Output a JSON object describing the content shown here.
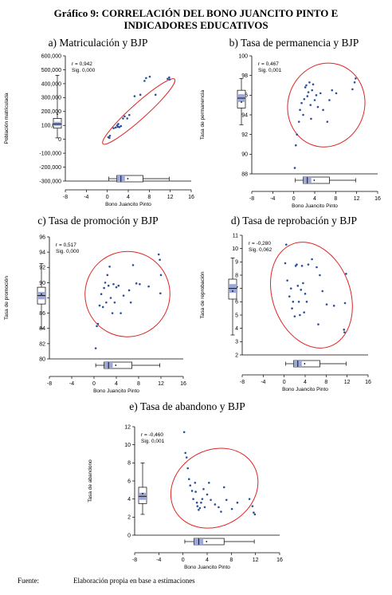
{
  "figure": {
    "title_line1": "Gráfico 9: CORRELACIÓN DEL BONO JUANCITO PINTO E",
    "title_line2": "INDICADORES EDUCATIVOS",
    "source_label": "Fuente:",
    "source_text": "Elaboración propia en base a estimaciones",
    "colors": {
      "points": "#2b4f9c",
      "ellipse": "#e02424",
      "box_fill": "#9ea8d6",
      "axis": "#000000"
    }
  },
  "chart_data": [
    {
      "type": "scatter",
      "title": "a) Matriculación y BJP",
      "xlabel": "Bono Juancito Pinto",
      "ylabel": "Población matriculada",
      "stat_r": "r = 0,942",
      "stat_sig": "Sig. 0,000",
      "xlim": [
        -8,
        16
      ],
      "ylim": [
        -300000,
        600000
      ],
      "xticks": [
        "-8",
        "-4",
        "0",
        "4",
        "8",
        "12",
        "16"
      ],
      "yticks": [
        "-300,000",
        "-200,000",
        "-100,000",
        "0",
        "100,000",
        "200,000",
        "300,000",
        "400,000",
        "500,000",
        "600,000"
      ],
      "ellipse": {
        "cx": 6,
        "cy": 200000,
        "rx": 9.2,
        "ry": 55000,
        "angle_deg": -42
      },
      "y_box": {
        "min": 10000,
        "q1": 80000,
        "median": 110000,
        "q3": 150000,
        "max": 460000,
        "mean": 180000
      },
      "x_box": {
        "min": 0.3,
        "q1": 1.8,
        "median": 2.6,
        "q3": 6.8,
        "max": 11.8,
        "mean": 3.9
      },
      "points": [
        [
          0.2,
          15000
        ],
        [
          0.5,
          25000
        ],
        [
          0.4,
          10000
        ],
        [
          1.2,
          80000
        ],
        [
          1.6,
          85000
        ],
        [
          2.0,
          90000
        ],
        [
          2.3,
          88000
        ],
        [
          2.6,
          95000
        ],
        [
          1.9,
          100000
        ],
        [
          2.1,
          110000
        ],
        [
          3.0,
          150000
        ],
        [
          3.3,
          165000
        ],
        [
          4.2,
          175000
        ],
        [
          3.8,
          150000
        ],
        [
          5.2,
          310000
        ],
        [
          6.3,
          320000
        ],
        [
          7.1,
          420000
        ],
        [
          7.4,
          440000
        ],
        [
          8.1,
          450000
        ],
        [
          9.2,
          320000
        ],
        [
          11.5,
          435000
        ],
        [
          11.8,
          445000
        ],
        [
          11.9,
          430000
        ]
      ]
    },
    {
      "type": "scatter",
      "title": "b) Tasa de permanencia y BJP",
      "xlabel": "Bono Juancito Pinto",
      "ylabel": "Tasa de permanencia",
      "stat_r": "r = 0,467",
      "stat_sig": "Sig. 0,001",
      "xlim": [
        -8,
        16
      ],
      "ylim": [
        88,
        100
      ],
      "xticks": [
        "-8",
        "-4",
        "0",
        "4",
        "8",
        "12",
        "16"
      ],
      "yticks": [
        "88",
        "90",
        "92",
        "94",
        "96",
        "98",
        "100"
      ],
      "ellipse": {
        "cx": 6.2,
        "cy": 95.0,
        "rx": 7.3,
        "ry": 4.3,
        "angle_deg": 18
      },
      "y_box": {
        "min": 93.0,
        "q1": 94.7,
        "median": 95.7,
        "q3": 96.5,
        "max": 97.7,
        "mean": 95.3
      },
      "x_box": {
        "min": 0.3,
        "q1": 1.8,
        "median": 2.6,
        "q3": 6.8,
        "max": 11.8,
        "mean": 3.9
      },
      "points": [
        [
          0.2,
          88.6
        ],
        [
          0.4,
          90.9
        ],
        [
          0.6,
          92.0
        ],
        [
          1.0,
          93.3
        ],
        [
          1.2,
          94.5
        ],
        [
          1.5,
          95.2
        ],
        [
          1.8,
          94.0
        ],
        [
          2.0,
          95.6
        ],
        [
          2.2,
          96.8
        ],
        [
          2.4,
          97.0
        ],
        [
          2.6,
          95.9
        ],
        [
          2.8,
          96.3
        ],
        [
          3.0,
          97.3
        ],
        [
          3.2,
          95.0
        ],
        [
          3.3,
          93.6
        ],
        [
          3.5,
          96.5
        ],
        [
          3.7,
          97.1
        ],
        [
          4.0,
          95.5
        ],
        [
          4.3,
          96.0
        ],
        [
          4.6,
          94.8
        ],
        [
          5.1,
          96.2
        ],
        [
          5.6,
          94.5
        ],
        [
          6.4,
          93.3
        ],
        [
          6.8,
          95.5
        ],
        [
          7.3,
          96.5
        ],
        [
          8.1,
          96.2
        ],
        [
          11.2,
          96.6
        ],
        [
          11.6,
          97.3
        ],
        [
          11.8,
          97.7
        ]
      ]
    },
    {
      "type": "scatter",
      "title": "c) Tasa de promoción y BJP",
      "xlabel": "Bono Juancito Pinto",
      "ylabel": "Tasa de promoción",
      "stat_r": "r = 0,517",
      "stat_sig": "Sig. 0,000",
      "xlim": [
        -8,
        16
      ],
      "ylim": [
        80,
        96
      ],
      "xticks": [
        "-8",
        "-4",
        "0",
        "4",
        "8",
        "12",
        "16"
      ],
      "yticks": [
        "80",
        "82",
        "84",
        "86",
        "88",
        "90",
        "92",
        "94",
        "96"
      ],
      "ellipse": {
        "cx": 6.0,
        "cy": 88.5,
        "rx": 7.6,
        "ry": 5.6,
        "angle_deg": 25
      },
      "y_box": {
        "min": 84.0,
        "q1": 87.2,
        "median": 88.3,
        "q3": 89.4,
        "max": 92.5,
        "mean": 88.5
      },
      "x_box": {
        "min": 0.3,
        "q1": 1.8,
        "median": 2.6,
        "q3": 6.8,
        "max": 11.8,
        "mean": 3.9
      },
      "points": [
        [
          0.3,
          81.4
        ],
        [
          0.5,
          84.3
        ],
        [
          0.7,
          84.6
        ],
        [
          1.0,
          87.0
        ],
        [
          1.3,
          88.5
        ],
        [
          1.6,
          86.8
        ],
        [
          1.8,
          89.3
        ],
        [
          2.0,
          90.0
        ],
        [
          2.2,
          87.4
        ],
        [
          2.4,
          91.0
        ],
        [
          2.6,
          89.6
        ],
        [
          2.8,
          92.1
        ],
        [
          3.0,
          88.0
        ],
        [
          3.3,
          86.0
        ],
        [
          3.5,
          89.8
        ],
        [
          3.7,
          87.4
        ],
        [
          4.0,
          89.4
        ],
        [
          4.4,
          89.6
        ],
        [
          4.8,
          86.0
        ],
        [
          5.3,
          88.3
        ],
        [
          6.3,
          89.0
        ],
        [
          6.6,
          87.4
        ],
        [
          7.0,
          92.3
        ],
        [
          7.6,
          89.9
        ],
        [
          8.2,
          89.8
        ],
        [
          9.8,
          89.5
        ],
        [
          11.6,
          93.7
        ],
        [
          11.8,
          93.0
        ],
        [
          11.9,
          88.6
        ],
        [
          12.0,
          91.0
        ]
      ]
    },
    {
      "type": "scatter",
      "title": "d) Tasa de reprobación y BJP",
      "xlabel": "Bono Juancito Pinto",
      "ylabel": "Tasa de reprobación",
      "stat_r": "r = -0,280",
      "stat_sig": "Sig. 0,062",
      "xlim": [
        -8,
        16
      ],
      "ylim": [
        2,
        11
      ],
      "xticks": [
        "-8",
        "-4",
        "0",
        "4",
        "8",
        "12",
        "16"
      ],
      "yticks": [
        "2",
        "3",
        "4",
        "5",
        "6",
        "7",
        "8",
        "9",
        "10",
        "11"
      ],
      "ellipse": {
        "cx": 5.2,
        "cy": 6.5,
        "rx": 7.4,
        "ry": 4.1,
        "angle_deg": -20
      },
      "y_box": {
        "min": 3.5,
        "q1": 6.2,
        "median": 7.0,
        "q3": 7.7,
        "max": 9.3,
        "mean": 6.8
      },
      "x_box": {
        "min": 0.3,
        "q1": 1.8,
        "median": 2.6,
        "q3": 6.8,
        "max": 11.8,
        "mean": 3.9
      },
      "points": [
        [
          0.2,
          8.9
        ],
        [
          0.4,
          10.3
        ],
        [
          0.6,
          7.6
        ],
        [
          1.0,
          6.4
        ],
        [
          1.3,
          7.0
        ],
        [
          1.5,
          5.5
        ],
        [
          1.7,
          6.0
        ],
        [
          2.0,
          4.9
        ],
        [
          2.2,
          8.7
        ],
        [
          2.4,
          8.8
        ],
        [
          2.6,
          7.2
        ],
        [
          2.8,
          6.0
        ],
        [
          3.0,
          5.0
        ],
        [
          3.2,
          6.9
        ],
        [
          3.4,
          8.7
        ],
        [
          3.6,
          7.4
        ],
        [
          3.8,
          5.2
        ],
        [
          4.0,
          6.6
        ],
        [
          4.3,
          6.0
        ],
        [
          4.6,
          8.8
        ],
        [
          5.3,
          9.2
        ],
        [
          6.2,
          8.6
        ],
        [
          6.5,
          4.3
        ],
        [
          6.8,
          8.0
        ],
        [
          7.3,
          6.8
        ],
        [
          8.1,
          5.8
        ],
        [
          9.5,
          5.7
        ],
        [
          11.4,
          3.9
        ],
        [
          11.5,
          3.7
        ],
        [
          11.6,
          5.9
        ],
        [
          11.8,
          8.1
        ]
      ]
    },
    {
      "type": "scatter",
      "title": "e) Tasa de abandono y BJP",
      "xlabel": "Bono Juancito Pinto",
      "ylabel": "Tasa de abandono",
      "stat_r": "r = -0,460",
      "stat_sig": "Sig. 0,001",
      "xlim": [
        -8,
        16
      ],
      "ylim": [
        0,
        12
      ],
      "xticks": [
        "-8",
        "-4",
        "0",
        "4",
        "8",
        "12",
        "16"
      ],
      "yticks": [
        "0",
        "2",
        "4",
        "6",
        "8",
        "10",
        "12"
      ],
      "ellipse": {
        "cx": 5.2,
        "cy": 5.2,
        "rx": 7.5,
        "ry": 4.2,
        "angle_deg": -30
      },
      "y_box": {
        "min": 2.3,
        "q1": 3.5,
        "median": 4.3,
        "q3": 5.3,
        "max": 8.0,
        "mean": 4.6
      },
      "x_box": {
        "min": 0.3,
        "q1": 1.8,
        "median": 2.6,
        "q3": 6.8,
        "max": 11.8,
        "mean": 3.9
      },
      "points": [
        [
          0.2,
          11.4
        ],
        [
          0.4,
          9.1
        ],
        [
          0.6,
          8.6
        ],
        [
          0.8,
          7.4
        ],
        [
          1.0,
          6.2
        ],
        [
          1.2,
          5.5
        ],
        [
          1.5,
          4.9
        ],
        [
          1.7,
          4.0
        ],
        [
          2.0,
          5.8
        ],
        [
          2.1,
          4.8
        ],
        [
          2.3,
          3.6
        ],
        [
          2.4,
          3.2
        ],
        [
          2.6,
          2.8
        ],
        [
          2.8,
          3.0
        ],
        [
          3.0,
          3.6
        ],
        [
          3.2,
          4.0
        ],
        [
          3.4,
          5.1
        ],
        [
          3.6,
          3.1
        ],
        [
          4.0,
          4.5
        ],
        [
          4.3,
          5.8
        ],
        [
          4.6,
          3.9
        ],
        [
          5.3,
          3.4
        ],
        [
          5.9,
          3.1
        ],
        [
          6.3,
          2.6
        ],
        [
          6.8,
          5.3
        ],
        [
          7.2,
          3.9
        ],
        [
          8.1,
          2.9
        ],
        [
          9.0,
          3.6
        ],
        [
          11.0,
          4.0
        ],
        [
          11.5,
          3.2
        ],
        [
          11.7,
          2.5
        ],
        [
          11.9,
          2.3
        ]
      ]
    }
  ]
}
